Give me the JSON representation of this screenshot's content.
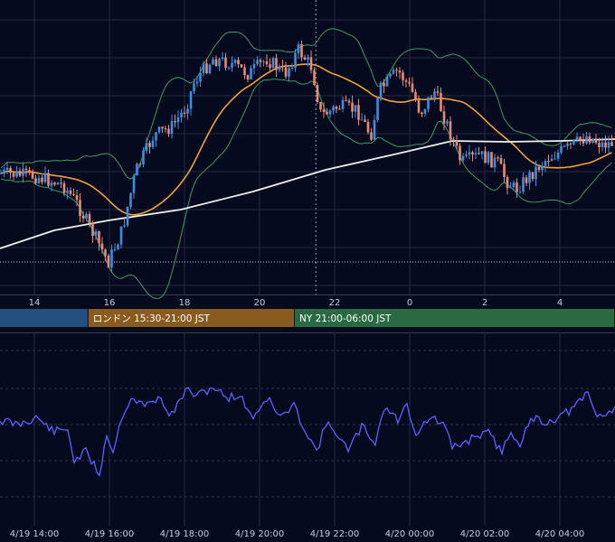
{
  "theme": {
    "background": "#060a1f",
    "grid": "#262b40",
    "candle_up": "#3a8fe0",
    "candle_down": "#e88a78",
    "bollinger": "#3f9a5f",
    "ma_short": "#f1a33a",
    "ma_long": "#f0f0f0",
    "oscillator": "#5a62ff",
    "session_tokyo": "#24507f",
    "session_london": "#8a5b1e",
    "session_ny": "#2a6a43"
  },
  "chart_data": [
    {
      "type": "candlestick",
      "title": "",
      "x_ticks": [
        "14",
        "16",
        "18",
        "20",
        "22",
        "0",
        "2",
        "4"
      ],
      "x_range_hours": [
        13.0,
        29.0
      ],
      "crosshair_x_hour": 21.5,
      "reference_level_price": 116,
      "indicators": [
        "bollinger-bands",
        "moving-average-short",
        "moving-average-long"
      ],
      "grid": true
    },
    {
      "type": "bar",
      "title": "sessions",
      "sessions": [
        {
          "name": "",
          "start_hour": 13.0,
          "end_hour": 15.5
        },
        {
          "name": "ロンドン 15:30-21:00 JST",
          "start_hour": 15.5,
          "end_hour": 21.0
        },
        {
          "name": "NY 21:00-06:00 JST",
          "start_hour": 21.0,
          "end_hour": 29.0
        }
      ]
    },
    {
      "type": "line",
      "title": "",
      "x_ticks": [
        "4/19 14:00",
        "4/19 16:00",
        "4/19 18:00",
        "4/19 20:00",
        "4/19 22:00",
        "4/20 00:00",
        "4/20 02:00",
        "4/20 04:00"
      ],
      "grid": true
    }
  ]
}
